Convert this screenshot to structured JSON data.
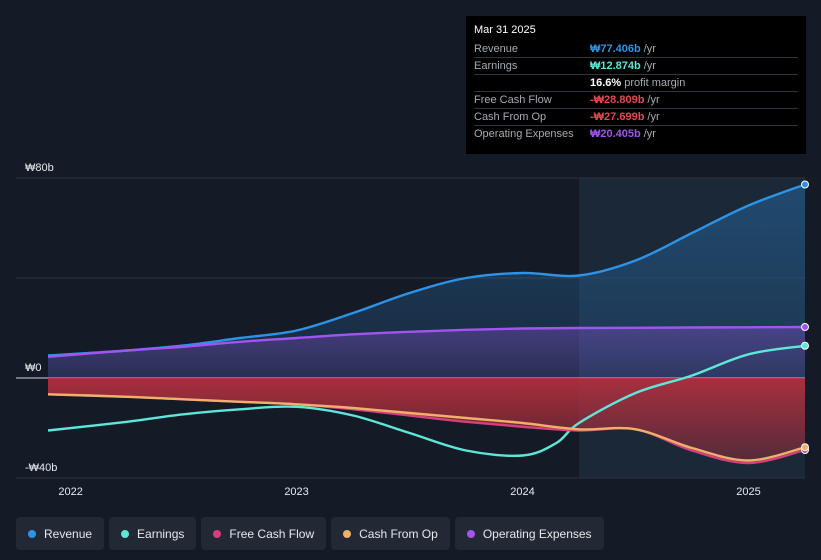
{
  "tooltip": {
    "date": "Mar 31 2025",
    "rows": [
      {
        "label": "Revenue",
        "value": "₩77.406b",
        "unit": "/yr",
        "color": "#2e93e6"
      },
      {
        "label": "Earnings",
        "value": "₩12.874b",
        "unit": "/yr",
        "color": "#5ee7d9"
      },
      {
        "label": "",
        "value": "16.6%",
        "unit": "profit margin",
        "color": "#ffffff"
      },
      {
        "label": "Free Cash Flow",
        "value": "-₩28.809b",
        "unit": "/yr",
        "color": "#e8474f"
      },
      {
        "label": "Cash From Op",
        "value": "-₩27.699b",
        "unit": "/yr",
        "color": "#e8474f"
      },
      {
        "label": "Operating Expenses",
        "value": "₩20.405b",
        "unit": "/yr",
        "color": "#a155f0"
      }
    ]
  },
  "legend": [
    {
      "name": "Revenue",
      "color": "#2e93e6"
    },
    {
      "name": "Earnings",
      "color": "#5ee7d9"
    },
    {
      "name": "Free Cash Flow",
      "color": "#d4407c"
    },
    {
      "name": "Cash From Op",
      "color": "#f0b06a"
    },
    {
      "name": "Operating Expenses",
      "color": "#a155f0"
    }
  ],
  "chart_data": {
    "type": "area",
    "ylim": [
      -40,
      80
    ],
    "xlim": [
      2021.9,
      2025.25
    ],
    "y_ticks": [
      {
        "v": 80,
        "label": "₩80b"
      },
      {
        "v": 0,
        "label": "₩0"
      },
      {
        "v": -40,
        "label": "-₩40b"
      }
    ],
    "x_ticks": [
      {
        "v": 2022,
        "label": "2022"
      },
      {
        "v": 2023,
        "label": "2023"
      },
      {
        "v": 2024,
        "label": "2024"
      },
      {
        "v": 2025,
        "label": "2025"
      }
    ],
    "forecast_start": 2024.25,
    "series": [
      {
        "name": "Revenue",
        "color": "#2e93e6",
        "fill": true,
        "x": [
          2021.9,
          2022.25,
          2022.5,
          2022.75,
          2023.0,
          2023.25,
          2023.5,
          2023.75,
          2024.0,
          2024.25,
          2024.5,
          2024.75,
          2025.0,
          2025.25
        ],
        "y": [
          9,
          11,
          13,
          16,
          19,
          26,
          34,
          40,
          42,
          41,
          47,
          58,
          69,
          77.4
        ]
      },
      {
        "name": "Operating Expenses",
        "color": "#a155f0",
        "fill": true,
        "x": [
          2021.9,
          2022.25,
          2022.5,
          2022.75,
          2023.0,
          2023.25,
          2023.5,
          2023.75,
          2024.0,
          2024.25,
          2024.5,
          2024.75,
          2025.0,
          2025.25
        ],
        "y": [
          8.5,
          11,
          12.5,
          14.5,
          16,
          17.5,
          18.5,
          19.3,
          19.8,
          20.0,
          20.1,
          20.2,
          20.3,
          20.4
        ]
      },
      {
        "name": "Earnings",
        "color": "#5ee7d9",
        "fill": false,
        "x": [
          2021.9,
          2022.25,
          2022.5,
          2022.75,
          2023.0,
          2023.25,
          2023.5,
          2023.75,
          2024.0,
          2024.15,
          2024.25,
          2024.5,
          2024.75,
          2025.0,
          2025.25
        ],
        "y": [
          -21,
          -17.5,
          -14.5,
          -12.5,
          -11.5,
          -15,
          -22,
          -29,
          -31,
          -26,
          -18,
          -6,
          1,
          9.5,
          12.9
        ]
      },
      {
        "name": "Free Cash Flow",
        "color": "#d4407c",
        "fill": true,
        "x": [
          2021.9,
          2022.25,
          2022.5,
          2022.75,
          2023.0,
          2023.25,
          2023.5,
          2023.75,
          2024.0,
          2024.25,
          2024.5,
          2024.75,
          2025.0,
          2025.25
        ],
        "y": [
          -6.5,
          -7.5,
          -8.5,
          -9.5,
          -10.5,
          -12.5,
          -15,
          -17.5,
          -19.5,
          -21,
          -20.5,
          -29,
          -34,
          -28.8
        ]
      },
      {
        "name": "Cash From Op",
        "color": "#f0b06a",
        "fill": false,
        "x": [
          2021.9,
          2022.25,
          2022.5,
          2022.75,
          2023.0,
          2023.25,
          2023.5,
          2023.75,
          2024.0,
          2024.25,
          2024.5,
          2024.75,
          2025.0,
          2025.25
        ],
        "y": [
          -6.5,
          -7.5,
          -8.5,
          -9.5,
          -10.5,
          -12,
          -14,
          -16,
          -18,
          -20.5,
          -20.5,
          -28,
          -33,
          -27.7
        ]
      }
    ]
  }
}
